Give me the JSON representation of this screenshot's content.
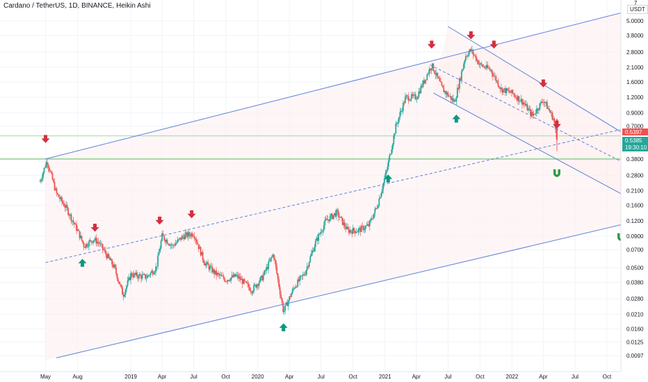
{
  "header": {
    "title": "Cardano / TetherUS, 1D, BINANCE, Heikin Ashi",
    "currency_box": "USDT",
    "currency_top": "7"
  },
  "colors": {
    "up": "#26a69a",
    "down": "#ef5350",
    "trendline": "#5b7fd9",
    "hline": "#a5d6a7",
    "arrow_up": "#089981",
    "arrow_down": "#d32f3f",
    "channel_fill": "#fdeeee",
    "price_red": "#ef5350",
    "price_teal": "#26a69a"
  },
  "chart_data": {
    "type": "candlestick",
    "title": "Cardano / TetherUS, 1D, BINANCE, Heikin Ashi",
    "y_scale": "log",
    "ylim": [
      0.0085,
      7
    ],
    "y_ticks": [
      "5.0000",
      "3.8000",
      "2.8000",
      "2.1000",
      "1.6000",
      "1.2000",
      "0.9000",
      "0.7000",
      "0.3800",
      "0.2800",
      "0.2100",
      "0.1600",
      "0.1200",
      "0.0900",
      "0.0700",
      "0.0500",
      "0.0380",
      "0.0280",
      "0.0210",
      "0.0160",
      "0.0125",
      "0.0097"
    ],
    "y_tick_values": [
      5.0,
      3.8,
      2.8,
      2.1,
      1.6,
      1.2,
      0.9,
      0.7,
      0.38,
      0.28,
      0.21,
      0.16,
      0.12,
      0.09,
      0.07,
      0.05,
      0.038,
      0.028,
      0.021,
      0.016,
      0.0125,
      0.0097
    ],
    "x_ticks": [
      "May",
      "Aug",
      "2019",
      "Apr",
      "Jul",
      "Oct",
      "2020",
      "Apr",
      "Jul",
      "Oct",
      "2021",
      "Apr",
      "Jul",
      "Oct",
      "2022",
      "Apr",
      "Jul",
      "Oct"
    ],
    "x_tick_dates": [
      "2018-05-01",
      "2018-08-01",
      "2019-01-01",
      "2019-04-01",
      "2019-07-01",
      "2019-10-01",
      "2020-01-01",
      "2020-04-01",
      "2020-07-01",
      "2020-10-01",
      "2021-01-01",
      "2021-04-01",
      "2021-07-01",
      "2021-10-01",
      "2022-01-01",
      "2022-04-01",
      "2022-07-01",
      "2022-10-01"
    ],
    "price_labels": [
      {
        "text": "0.5397",
        "value": 0.5397,
        "color": "red"
      },
      {
        "text": "0.5385",
        "value": 0.5385,
        "color": "teal"
      },
      {
        "text": "19:30:10",
        "value": 0.5,
        "color": "teal"
      }
    ],
    "price_path": [
      {
        "date": "2018-04-15",
        "value": 0.25
      },
      {
        "date": "2018-05-05",
        "value": 0.37
      },
      {
        "date": "2018-06-01",
        "value": 0.2
      },
      {
        "date": "2018-07-01",
        "value": 0.15
      },
      {
        "date": "2018-08-01",
        "value": 0.1
      },
      {
        "date": "2018-08-20",
        "value": 0.075
      },
      {
        "date": "2018-09-15",
        "value": 0.085
      },
      {
        "date": "2018-10-01",
        "value": 0.08
      },
      {
        "date": "2018-11-15",
        "value": 0.05
      },
      {
        "date": "2018-12-10",
        "value": 0.03
      },
      {
        "date": "2019-01-01",
        "value": 0.044
      },
      {
        "date": "2019-02-15",
        "value": 0.042
      },
      {
        "date": "2019-03-15",
        "value": 0.05
      },
      {
        "date": "2019-04-01",
        "value": 0.09
      },
      {
        "date": "2019-05-01",
        "value": 0.075
      },
      {
        "date": "2019-06-01",
        "value": 0.09
      },
      {
        "date": "2019-07-01",
        "value": 0.095
      },
      {
        "date": "2019-08-01",
        "value": 0.055
      },
      {
        "date": "2019-09-01",
        "value": 0.045
      },
      {
        "date": "2019-10-01",
        "value": 0.04
      },
      {
        "date": "2019-11-01",
        "value": 0.043
      },
      {
        "date": "2019-12-15",
        "value": 0.033
      },
      {
        "date": "2020-01-15",
        "value": 0.042
      },
      {
        "date": "2020-02-15",
        "value": 0.065
      },
      {
        "date": "2020-03-15",
        "value": 0.022
      },
      {
        "date": "2020-04-15",
        "value": 0.035
      },
      {
        "date": "2020-05-15",
        "value": 0.045
      },
      {
        "date": "2020-06-15",
        "value": 0.08
      },
      {
        "date": "2020-07-15",
        "value": 0.12
      },
      {
        "date": "2020-08-15",
        "value": 0.14
      },
      {
        "date": "2020-09-15",
        "value": 0.1
      },
      {
        "date": "2020-10-15",
        "value": 0.1
      },
      {
        "date": "2020-11-15",
        "value": 0.11
      },
      {
        "date": "2020-12-10",
        "value": 0.16
      },
      {
        "date": "2021-01-05",
        "value": 0.3
      },
      {
        "date": "2021-02-01",
        "value": 0.7
      },
      {
        "date": "2021-03-01",
        "value": 1.2
      },
      {
        "date": "2021-04-01",
        "value": 1.2
      },
      {
        "date": "2021-05-15",
        "value": 2.2
      },
      {
        "date": "2021-06-15",
        "value": 1.4
      },
      {
        "date": "2021-07-20",
        "value": 1.1
      },
      {
        "date": "2021-08-20",
        "value": 2.6
      },
      {
        "date": "2021-09-05",
        "value": 2.9
      },
      {
        "date": "2021-10-01",
        "value": 2.2
      },
      {
        "date": "2021-11-01",
        "value": 2.0
      },
      {
        "date": "2021-12-01",
        "value": 1.4
      },
      {
        "date": "2022-01-01",
        "value": 1.3
      },
      {
        "date": "2022-02-01",
        "value": 1.1
      },
      {
        "date": "2022-03-01",
        "value": 0.85
      },
      {
        "date": "2022-04-01",
        "value": 1.15
      },
      {
        "date": "2022-05-01",
        "value": 0.8
      },
      {
        "date": "2022-05-10",
        "value": 0.54
      }
    ],
    "trendlines": [
      {
        "kind": "channel-top",
        "from": {
          "date": "2018-05-01",
          "value": 0.38
        },
        "to": {
          "date": "2022-12-01",
          "value": 6.0
        },
        "style": "solid"
      },
      {
        "kind": "channel-mid",
        "from": {
          "date": "2018-05-01",
          "value": 0.055
        },
        "to": {
          "date": "2022-12-01",
          "value": 0.68
        },
        "style": "dashed"
      },
      {
        "kind": "channel-bottom",
        "from": {
          "date": "2018-06-01",
          "value": 0.0093
        },
        "to": {
          "date": "2022-12-01",
          "value": 0.115
        },
        "style": "solid"
      },
      {
        "kind": "down-upper",
        "from": {
          "date": "2021-07-01",
          "value": 4.5
        },
        "to": {
          "date": "2022-12-01",
          "value": 0.58
        },
        "style": "solid"
      },
      {
        "kind": "down-mid",
        "from": {
          "date": "2021-05-10",
          "value": 2.2
        },
        "to": {
          "date": "2022-12-01",
          "value": 0.34
        },
        "style": "dashed"
      },
      {
        "kind": "down-lower",
        "from": {
          "date": "2021-05-20",
          "value": 1.3
        },
        "to": {
          "date": "2022-12-01",
          "value": 0.185
        },
        "style": "solid"
      }
    ],
    "horizontal_lines": [
      {
        "value": 0.38,
        "color": "green",
        "width": 2
      },
      {
        "value": 0.585,
        "color": "green",
        "width": 1
      }
    ],
    "markers": [
      {
        "type": "down",
        "date": "2018-05-01",
        "value": 0.55
      },
      {
        "type": "up",
        "date": "2018-08-15",
        "value": 0.055
      },
      {
        "type": "down",
        "date": "2018-09-20",
        "value": 0.105
      },
      {
        "type": "down",
        "date": "2019-03-25",
        "value": 0.12
      },
      {
        "type": "down",
        "date": "2019-06-25",
        "value": 0.135
      },
      {
        "type": "up",
        "date": "2020-03-15",
        "value": 0.0165
      },
      {
        "type": "up",
        "date": "2021-01-10",
        "value": 0.265
      },
      {
        "type": "down",
        "date": "2021-05-15",
        "value": 3.2
      },
      {
        "type": "up",
        "date": "2021-07-25",
        "value": 0.81
      },
      {
        "type": "down",
        "date": "2021-09-05",
        "value": 3.8
      },
      {
        "type": "down",
        "date": "2021-11-10",
        "value": 3.2
      },
      {
        "type": "down",
        "date": "2022-04-01",
        "value": 1.55
      },
      {
        "type": "down",
        "date": "2022-05-10",
        "value": 0.72
      },
      {
        "type": "magnet",
        "date": "2022-05-10",
        "value": 0.29
      },
      {
        "type": "magnet",
        "date": "2022-11-10",
        "value": 0.088
      }
    ]
  }
}
